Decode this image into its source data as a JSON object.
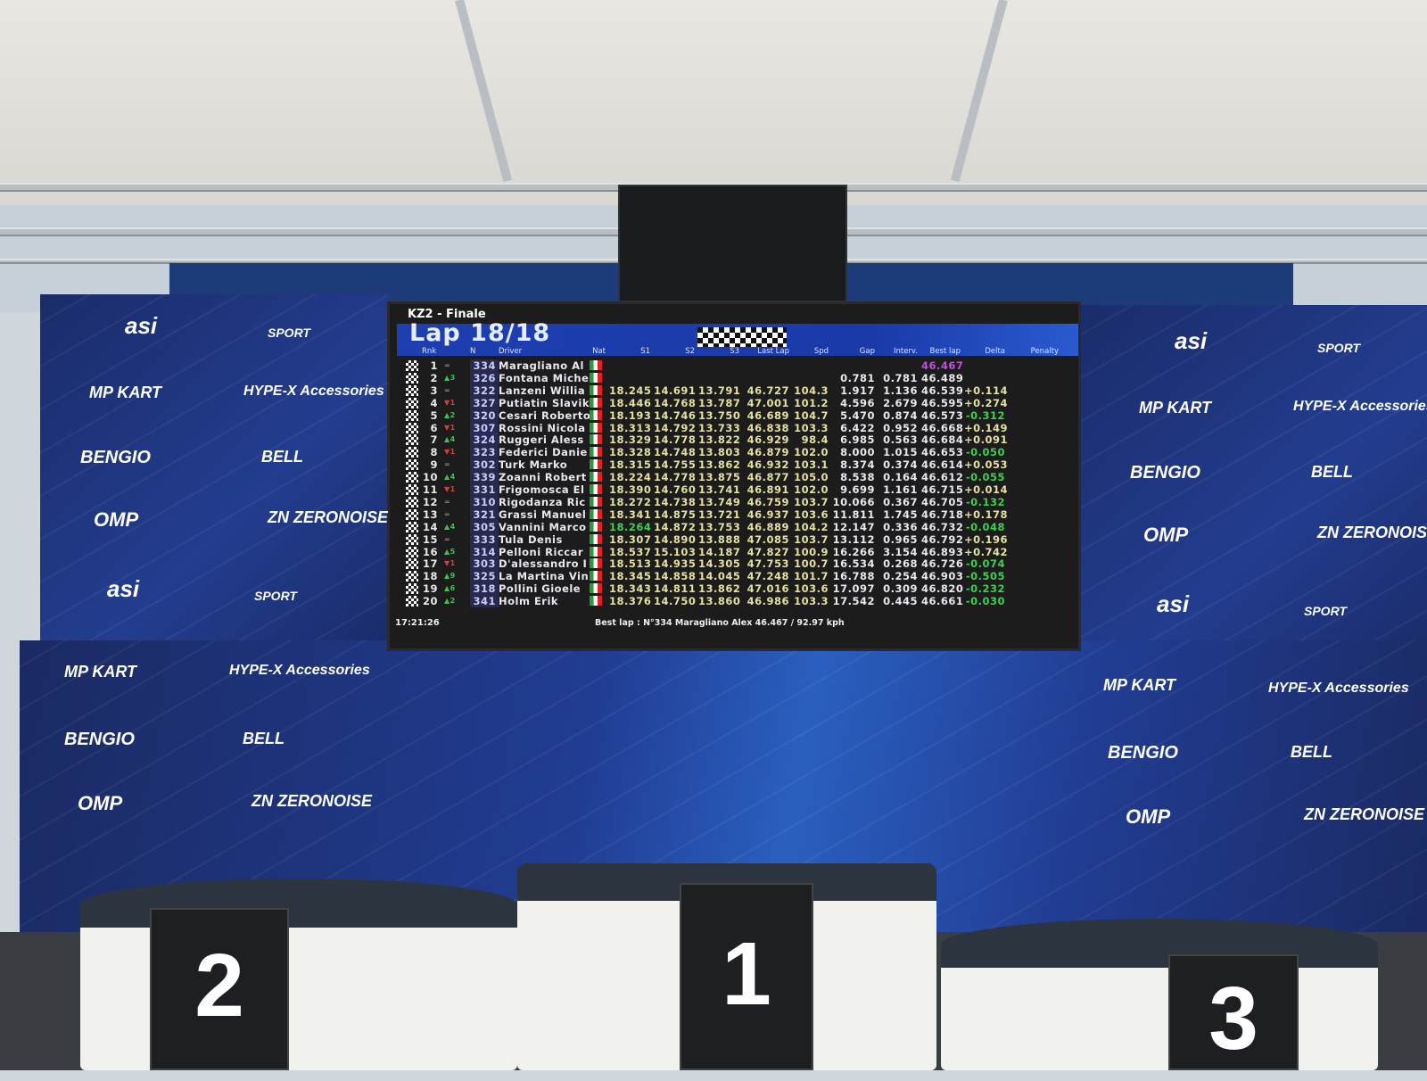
{
  "screen": {
    "title": "KZ2 - Finale",
    "lap": "Lap 18/18",
    "headers": [
      "Rnk",
      "",
      "N",
      "Driver",
      "Nat",
      "S1",
      "S2",
      "S3",
      "Last Lap",
      "Spd",
      "Gap",
      "Interv.",
      "Best lap",
      "Delta",
      "Penalty"
    ],
    "rows": [
      {
        "rnk": "1",
        "chg": "=",
        "dir": "eq",
        "n": "334",
        "driver": "Maragliano Al",
        "s1": "",
        "s2": "",
        "s3": "",
        "last": "",
        "spd": "",
        "gap": "",
        "interv": "",
        "best": "46.467",
        "delta": ""
      },
      {
        "rnk": "2",
        "chg": "▲3",
        "dir": "up",
        "n": "326",
        "driver": "Fontana Miche",
        "s1": "",
        "s2": "",
        "s3": "",
        "last": "",
        "spd": "",
        "gap": "0.781",
        "interv": "0.781",
        "best": "46.489",
        "delta": ""
      },
      {
        "rnk": "3",
        "chg": "=",
        "dir": "eq",
        "n": "322",
        "driver": "Lanzeni Willia",
        "s1": "18.245",
        "s2": "14.691",
        "s3": "13.791",
        "last": "46.727",
        "spd": "104.3",
        "gap": "1.917",
        "interv": "1.136",
        "best": "46.539",
        "delta": "+0.114"
      },
      {
        "rnk": "4",
        "chg": "▼1",
        "dir": "dn",
        "n": "327",
        "driver": "Putiatin Slavik",
        "s1": "18.446",
        "s2": "14.768",
        "s3": "13.787",
        "last": "47.001",
        "spd": "101.2",
        "gap": "4.596",
        "interv": "2.679",
        "best": "46.595",
        "delta": "+0.274"
      },
      {
        "rnk": "5",
        "chg": "▲2",
        "dir": "up",
        "n": "320",
        "driver": "Cesari Roberto",
        "s1": "18.193",
        "s2": "14.746",
        "s3": "13.750",
        "last": "46.689",
        "spd": "104.7",
        "gap": "5.470",
        "interv": "0.874",
        "best": "46.573",
        "delta": "-0.312"
      },
      {
        "rnk": "6",
        "chg": "▼1",
        "dir": "dn",
        "n": "307",
        "driver": "Rossini Nicola",
        "s1": "18.313",
        "s2": "14.792",
        "s3": "13.733",
        "last": "46.838",
        "spd": "103.3",
        "gap": "6.422",
        "interv": "0.952",
        "best": "46.668",
        "delta": "+0.149"
      },
      {
        "rnk": "7",
        "chg": "▲4",
        "dir": "up",
        "n": "324",
        "driver": "Ruggeri Aless",
        "s1": "18.329",
        "s2": "14.778",
        "s3": "13.822",
        "last": "46.929",
        "spd": "98.4",
        "gap": "6.985",
        "interv": "0.563",
        "best": "46.684",
        "delta": "+0.091"
      },
      {
        "rnk": "8",
        "chg": "▼1",
        "dir": "dn",
        "n": "323",
        "driver": "Federici Danie",
        "s1": "18.328",
        "s2": "14.748",
        "s3": "13.803",
        "last": "46.879",
        "spd": "102.0",
        "gap": "8.000",
        "interv": "1.015",
        "best": "46.653",
        "delta": "-0.050"
      },
      {
        "rnk": "9",
        "chg": "=",
        "dir": "eq",
        "n": "302",
        "driver": "Turk Marko",
        "s1": "18.315",
        "s2": "14.755",
        "s3": "13.862",
        "last": "46.932",
        "spd": "103.1",
        "gap": "8.374",
        "interv": "0.374",
        "best": "46.614",
        "delta": "+0.053"
      },
      {
        "rnk": "10",
        "chg": "▲4",
        "dir": "up",
        "n": "339",
        "driver": "Zoanni Robert",
        "s1": "18.224",
        "s2": "14.778",
        "s3": "13.875",
        "last": "46.877",
        "spd": "105.0",
        "gap": "8.538",
        "interv": "0.164",
        "best": "46.612",
        "delta": "-0.055"
      },
      {
        "rnk": "11",
        "chg": "▼1",
        "dir": "dn",
        "n": "331",
        "driver": "Frigomosca El",
        "s1": "18.390",
        "s2": "14.760",
        "s3": "13.741",
        "last": "46.891",
        "spd": "102.0",
        "gap": "9.699",
        "interv": "1.161",
        "best": "46.715",
        "delta": "+0.014"
      },
      {
        "rnk": "12",
        "chg": "=",
        "dir": "eq",
        "n": "310",
        "driver": "Rigodanza Ric",
        "s1": "18.272",
        "s2": "14.738",
        "s3": "13.749",
        "last": "46.759",
        "spd": "103.7",
        "gap": "10.066",
        "interv": "0.367",
        "best": "46.705",
        "delta": "-0.132"
      },
      {
        "rnk": "13",
        "chg": "=",
        "dir": "eq",
        "n": "321",
        "driver": "Grassi Manuel",
        "s1": "18.341",
        "s2": "14.875",
        "s3": "13.721",
        "last": "46.937",
        "spd": "103.6",
        "gap": "11.811",
        "interv": "1.745",
        "best": "46.718",
        "delta": "+0.178"
      },
      {
        "rnk": "14",
        "chg": "▲4",
        "dir": "up",
        "n": "305",
        "driver": "Vannini Marco",
        "s1": "18.264",
        "s2": "14.872",
        "s3": "13.753",
        "last": "46.889",
        "spd": "104.2",
        "gap": "12.147",
        "interv": "0.336",
        "best": "46.732",
        "delta": "-0.048"
      },
      {
        "rnk": "15",
        "chg": "=",
        "dir": "eq",
        "n": "333",
        "driver": "Tula Denis",
        "s1": "18.307",
        "s2": "14.890",
        "s3": "13.888",
        "last": "47.085",
        "spd": "103.7",
        "gap": "13.112",
        "interv": "0.965",
        "best": "46.792",
        "delta": "+0.196"
      },
      {
        "rnk": "16",
        "chg": "▲5",
        "dir": "up",
        "n": "314",
        "driver": "Pelloni Riccar",
        "s1": "18.537",
        "s2": "15.103",
        "s3": "14.187",
        "last": "47.827",
        "spd": "100.9",
        "gap": "16.266",
        "interv": "3.154",
        "best": "46.893",
        "delta": "+0.742"
      },
      {
        "rnk": "17",
        "chg": "▼1",
        "dir": "dn",
        "n": "303",
        "driver": "D'alessandro I",
        "s1": "18.513",
        "s2": "14.935",
        "s3": "14.305",
        "last": "47.753",
        "spd": "100.7",
        "gap": "16.534",
        "interv": "0.268",
        "best": "46.726",
        "delta": "-0.074"
      },
      {
        "rnk": "18",
        "chg": "▲9",
        "dir": "up",
        "n": "325",
        "driver": "La Martina Vin",
        "s1": "18.345",
        "s2": "14.858",
        "s3": "14.045",
        "last": "47.248",
        "spd": "101.7",
        "gap": "16.788",
        "interv": "0.254",
        "best": "46.903",
        "delta": "-0.505"
      },
      {
        "rnk": "19",
        "chg": "▲6",
        "dir": "up",
        "n": "318",
        "driver": "Pollini Gioele",
        "s1": "18.343",
        "s2": "14.811",
        "s3": "13.862",
        "last": "47.016",
        "spd": "103.6",
        "gap": "17.097",
        "interv": "0.309",
        "best": "46.820",
        "delta": "-0.232"
      },
      {
        "rnk": "20",
        "chg": "▲2",
        "dir": "up",
        "n": "341",
        "driver": "Holm Erik",
        "s1": "18.376",
        "s2": "14.750",
        "s3": "13.860",
        "last": "46.986",
        "spd": "103.3",
        "gap": "17.542",
        "interv": "0.445",
        "best": "46.661",
        "delta": "-0.030"
      }
    ],
    "clock": "17:21:26",
    "best_lap_info": "Best lap : N°334 Maragliano Alex    46.467 / 92.97 kph",
    "colors": {
      "best_lap": "#c050e0",
      "positive": "#e6e0a0",
      "negative": "#3fcf4f",
      "improved_sector": "#3fcf4f"
    }
  },
  "sponsors": [
    "asi",
    "SPORT",
    "MP KART",
    "HYPE-X Accessories",
    "BENGIO",
    "BELL",
    "OMP",
    "ZN ZERONOISE"
  ],
  "podium": {
    "first": "1",
    "second": "2",
    "third": "3"
  }
}
